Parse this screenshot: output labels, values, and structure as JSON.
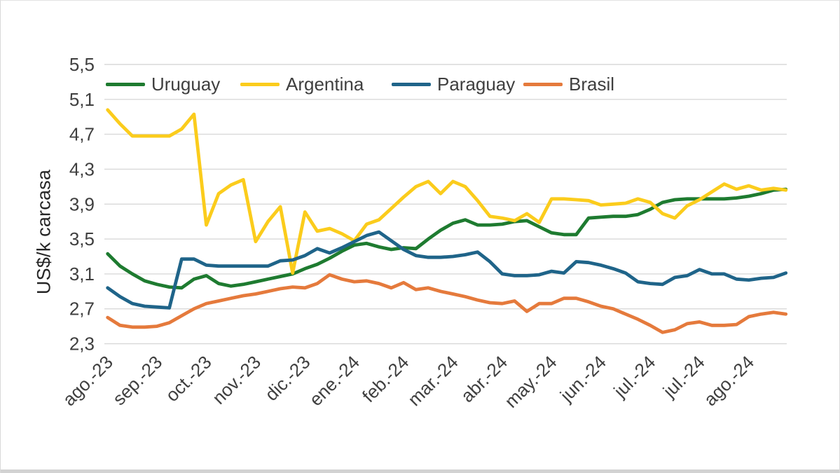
{
  "colors": {
    "background": "#ffffff",
    "grid": "#d9d9d9",
    "axis_text": "#3f3f3f",
    "bottom_bar": "#d2d2d2"
  },
  "chart_data": {
    "type": "line",
    "title": "",
    "ylabel": "US$/k carcasa",
    "xlabel": "",
    "grid": true,
    "legend_position": "top-inside",
    "ylim": [
      2.3,
      5.5
    ],
    "y_tick_values": [
      2.3,
      2.7,
      3.1,
      3.5,
      3.9,
      4.3,
      4.7,
      5.1,
      5.5
    ],
    "y_tick_labels": [
      "2,3",
      "2,7",
      "3,1",
      "3,5",
      "3,9",
      "4,3",
      "4,7",
      "5,1",
      "5,5"
    ],
    "n_points": 56,
    "x_tick_labels": [
      "ago.-23",
      "sep.-23",
      "oct.-23",
      "nov.-23",
      "dic.-23",
      "ene.-24",
      "feb.-24",
      "mar.-24",
      "abr.-24",
      "may.-24",
      "jun.-24",
      "jul.-24",
      "jul.-24",
      "ago.-24"
    ],
    "x_tick_point_indices": [
      0,
      4,
      8,
      12,
      16,
      20,
      24,
      28,
      32,
      36,
      40,
      44,
      48,
      52
    ],
    "series": [
      {
        "name": "Uruguay",
        "color": "#1E7B30",
        "values": [
          3.33,
          3.19,
          3.1,
          3.02,
          2.98,
          2.95,
          2.94,
          3.04,
          3.08,
          2.99,
          2.96,
          2.98,
          3.01,
          3.04,
          3.07,
          3.1,
          3.16,
          3.21,
          3.28,
          3.36,
          3.43,
          3.45,
          3.41,
          3.38,
          3.4,
          3.39,
          3.5,
          3.6,
          3.68,
          3.72,
          3.66,
          3.66,
          3.67,
          3.7,
          3.71,
          3.64,
          3.57,
          3.55,
          3.55,
          3.74,
          3.75,
          3.76,
          3.76,
          3.78,
          3.84,
          3.92,
          3.95,
          3.96,
          3.96,
          3.96,
          3.96,
          3.97,
          3.99,
          4.02,
          4.06,
          4.07
        ]
      },
      {
        "name": "Argentina",
        "color": "#FBCC1C",
        "values": [
          4.98,
          4.82,
          4.68,
          4.68,
          4.68,
          4.68,
          4.76,
          4.93,
          3.66,
          4.02,
          4.12,
          4.18,
          3.47,
          3.7,
          3.87,
          3.11,
          3.81,
          3.59,
          3.62,
          3.56,
          3.48,
          3.67,
          3.72,
          3.85,
          3.98,
          4.1,
          4.16,
          4.02,
          4.16,
          4.1,
          3.94,
          3.76,
          3.74,
          3.71,
          3.79,
          3.69,
          3.96,
          3.96,
          3.95,
          3.94,
          3.89,
          3.9,
          3.91,
          3.96,
          3.92,
          3.79,
          3.74,
          3.88,
          3.95,
          4.04,
          4.13,
          4.07,
          4.11,
          4.06,
          4.08,
          4.06
        ]
      },
      {
        "name": "Paraguay",
        "color": "#1F6489",
        "values": [
          2.94,
          2.84,
          2.76,
          2.73,
          2.72,
          2.71,
          3.27,
          3.27,
          3.2,
          3.19,
          3.19,
          3.19,
          3.19,
          3.19,
          3.25,
          3.26,
          3.31,
          3.39,
          3.34,
          3.4,
          3.47,
          3.54,
          3.58,
          3.48,
          3.38,
          3.31,
          3.29,
          3.29,
          3.3,
          3.32,
          3.35,
          3.24,
          3.1,
          3.08,
          3.08,
          3.09,
          3.13,
          3.11,
          3.24,
          3.23,
          3.2,
          3.16,
          3.11,
          3.01,
          2.99,
          2.98,
          3.06,
          3.08,
          3.15,
          3.1,
          3.1,
          3.04,
          3.03,
          3.05,
          3.06,
          3.11
        ]
      },
      {
        "name": "Brasil",
        "color": "#E57A3C",
        "values": [
          2.6,
          2.51,
          2.49,
          2.49,
          2.5,
          2.54,
          2.62,
          2.7,
          2.76,
          2.79,
          2.82,
          2.85,
          2.87,
          2.9,
          2.93,
          2.95,
          2.94,
          2.99,
          3.09,
          3.04,
          3.01,
          3.02,
          2.99,
          2.94,
          3.0,
          2.92,
          2.94,
          2.9,
          2.87,
          2.84,
          2.8,
          2.77,
          2.76,
          2.79,
          2.67,
          2.76,
          2.76,
          2.82,
          2.82,
          2.78,
          2.73,
          2.7,
          2.64,
          2.58,
          2.51,
          2.43,
          2.46,
          2.53,
          2.55,
          2.51,
          2.51,
          2.52,
          2.61,
          2.64,
          2.66,
          2.64
        ]
      }
    ]
  }
}
